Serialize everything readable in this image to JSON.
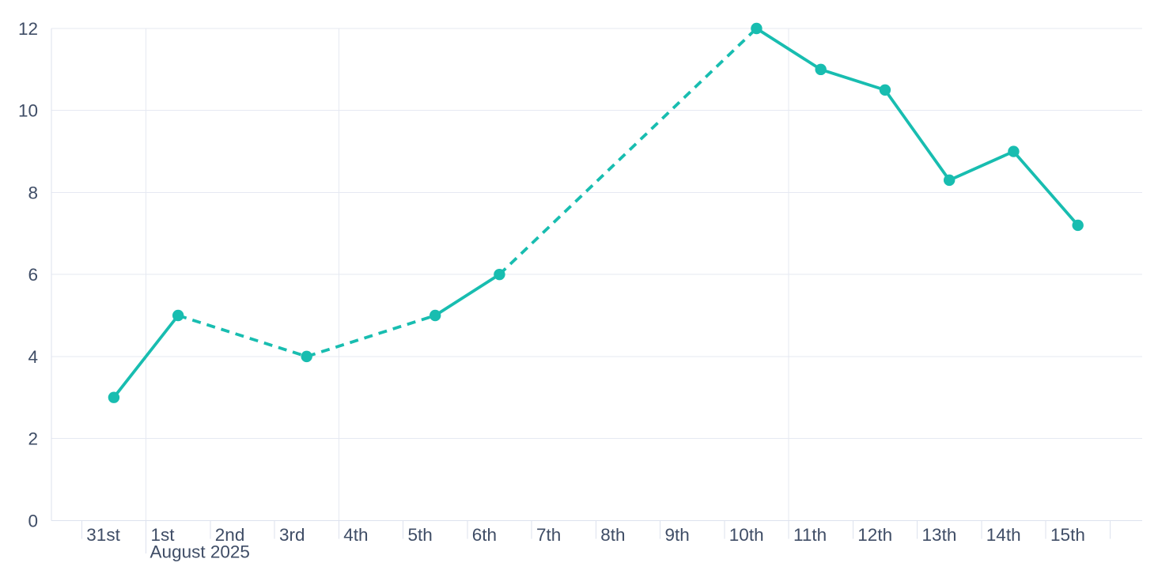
{
  "chart_data": {
    "type": "line",
    "title": "",
    "x_axis": {
      "tick_labels": [
        "31st",
        "1st",
        "2nd",
        "3rd",
        "4th",
        "5th",
        "6th",
        "7th",
        "8th",
        "9th",
        "10th",
        "11th",
        "12th",
        "13th",
        "14th",
        "15th"
      ],
      "month_label": "August 2025",
      "month_label_under": "1st",
      "major_gridlines_at": [
        "1st",
        "4th",
        "11th"
      ],
      "has_extra_end_tick": true
    },
    "y_axis": {
      "tick_labels": [
        "0",
        "2",
        "4",
        "6",
        "8",
        "10",
        "12"
      ],
      "tick_values": [
        0,
        2,
        4,
        6,
        8,
        10,
        12
      ],
      "range": [
        0,
        12
      ],
      "grid": "on"
    },
    "legend": "none",
    "series": [
      {
        "name": "series-1",
        "color": "#18bdb0",
        "marker": "circle",
        "points": [
          {
            "x": "31st",
            "y": 3
          },
          {
            "x": "1st",
            "y": 5
          },
          {
            "x": "3rd",
            "y": 4
          },
          {
            "x": "5th",
            "y": 5
          },
          {
            "x": "6th",
            "y": 6
          },
          {
            "x": "10th",
            "y": 12
          },
          {
            "x": "11th",
            "y": 11
          },
          {
            "x": "12th",
            "y": 10.5
          },
          {
            "x": "13th",
            "y": 8.3
          },
          {
            "x": "14th",
            "y": 9
          },
          {
            "x": "15th",
            "y": 7.2
          }
        ],
        "segments": [
          {
            "style": "solid",
            "from": "31st",
            "to": "1st"
          },
          {
            "style": "dashed",
            "from": "1st",
            "to": "5th"
          },
          {
            "style": "solid",
            "from": "5th",
            "to": "6th"
          },
          {
            "style": "dashed",
            "from": "6th",
            "to": "10th"
          },
          {
            "style": "solid",
            "from": "10th",
            "to": "15th"
          }
        ]
      }
    ],
    "colors": {
      "line": "#18bdb0",
      "labels": "#3f4d66",
      "gridline": "#e6e9f2",
      "axis": "#dde2ee",
      "background": "#ffffff"
    }
  }
}
